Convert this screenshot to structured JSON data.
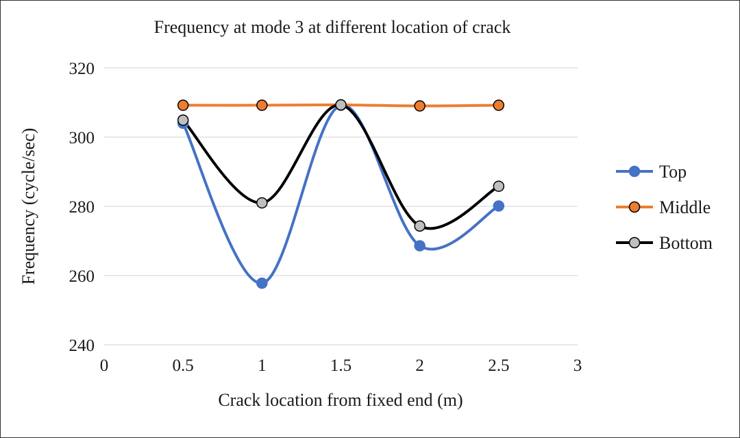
{
  "chart_data": {
    "type": "scatter",
    "title": "Frequency at mode 3 at different location of  crack",
    "xlabel": "Crack location from fixed end (m)",
    "ylabel": "Frequency (cycle/sec)",
    "xlim": [
      0,
      3
    ],
    "ylim": [
      240,
      320
    ],
    "xticks": [
      0,
      0.5,
      1,
      1.5,
      2,
      2.5,
      3
    ],
    "xtick_labels": [
      "0",
      "0.5",
      "1",
      "1.5",
      "2",
      "2.5",
      "3"
    ],
    "yticks": [
      240,
      260,
      280,
      300,
      320
    ],
    "ytick_labels": [
      "240",
      "260",
      "280",
      "300",
      "320"
    ],
    "grid": "horizontal",
    "smooth_lines": true,
    "legend_position": "right",
    "series": [
      {
        "name": "Top",
        "color": "#4472C4",
        "marker_fill": "#4472C4",
        "marker_stroke": "#4472C4",
        "x": [
          0.5,
          1,
          1.5,
          2,
          2.5
        ],
        "y": [
          304.0,
          257.8,
          309.2,
          268.6,
          280.1
        ]
      },
      {
        "name": "Middle",
        "color": "#ED7D31",
        "marker_fill": "#ED7D31",
        "marker_stroke": "#000000",
        "x": [
          0.5,
          1,
          1.5,
          2,
          2.5
        ],
        "y": [
          309.2,
          309.2,
          309.3,
          309.0,
          309.2
        ]
      },
      {
        "name": "Bottom",
        "color": "#000000",
        "marker_fill": "#BFBFBF",
        "marker_stroke": "#000000",
        "x": [
          0.5,
          1,
          1.5,
          2,
          2.5
        ],
        "y": [
          304.9,
          281.0,
          309.3,
          274.3,
          285.8
        ]
      }
    ]
  }
}
